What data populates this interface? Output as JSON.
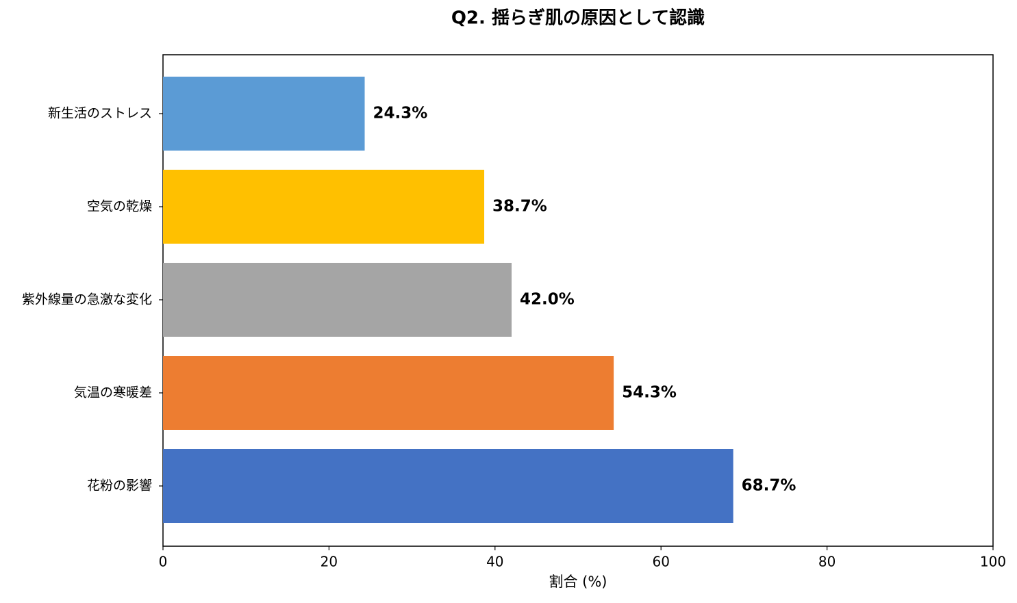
{
  "chart_data": {
    "type": "barh",
    "title": "Q2. 揺らぎ肌の原因として認識",
    "xlabel": "割合 (%)",
    "categories": [
      "新生活のストレス",
      "空気の乾燥",
      "紫外線量の急激な変化",
      "気温の寒暖差",
      "花粉の影響"
    ],
    "values": [
      24.3,
      38.7,
      42.0,
      54.3,
      68.7
    ],
    "value_labels": [
      "24.3%",
      "38.7%",
      "42.0%",
      "54.3%",
      "68.7%"
    ],
    "colors": [
      "#5b9bd5",
      "#ffc000",
      "#a5a5a5",
      "#ed7d31",
      "#4472c4"
    ],
    "xlim": [
      0,
      100
    ],
    "xticks": [
      0,
      20,
      40,
      60,
      80,
      100
    ],
    "grid": false
  }
}
